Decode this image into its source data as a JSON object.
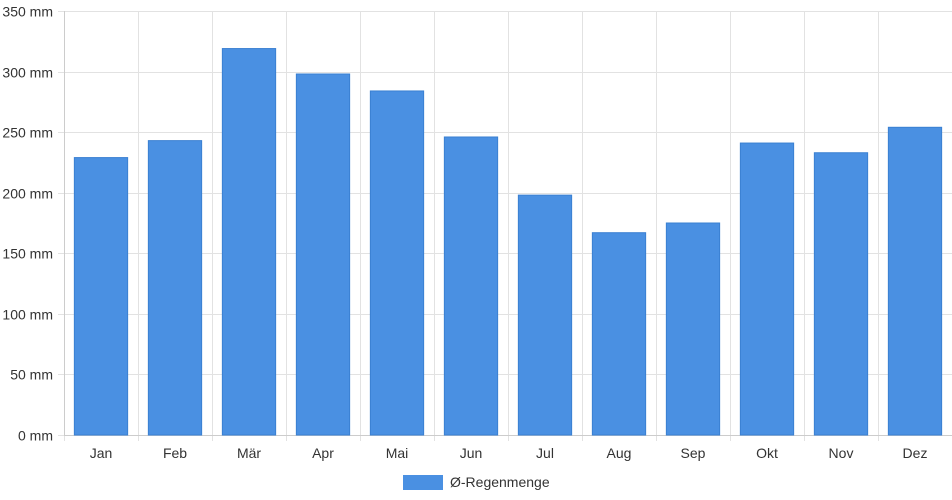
{
  "chart_data": {
    "type": "bar",
    "categories": [
      "Jan",
      "Feb",
      "Mär",
      "Apr",
      "Mai",
      "Jun",
      "Jul",
      "Aug",
      "Sep",
      "Okt",
      "Nov",
      "Dez"
    ],
    "series": [
      {
        "name": "Ø-Regenmenge",
        "values": [
          229,
          243,
          319,
          298,
          284,
          246,
          198,
          167,
          175,
          241,
          233,
          254
        ],
        "color": "#4a90e2"
      }
    ],
    "yticks": [
      "0 mm",
      "50 mm",
      "100 mm",
      "150 mm",
      "200 mm",
      "250 mm",
      "300 mm",
      "350 mm"
    ],
    "ylim": [
      0,
      350
    ],
    "grid": true,
    "legend_position": "bottom"
  }
}
